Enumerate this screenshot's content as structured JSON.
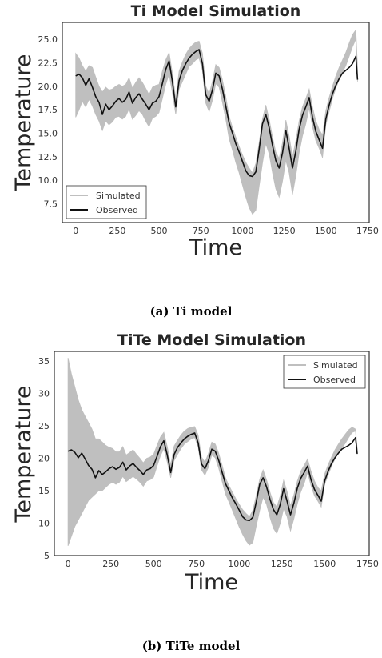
{
  "chart_data": [
    {
      "type": "line",
      "title": "Ti Model Simulation",
      "xlabel": "Time",
      "ylabel": "Temperature",
      "xlim": [
        -80,
        1760
      ],
      "ylim": [
        5.5,
        26.8
      ],
      "xticks": [
        0,
        250,
        500,
        750,
        1000,
        1250,
        1500,
        1750
      ],
      "yticks": [
        7.5,
        10.0,
        12.5,
        15.0,
        17.5,
        20.0,
        22.5,
        25.0
      ],
      "ytick_labels": [
        "7.5",
        "10.0",
        "12.5",
        "15.0",
        "17.5",
        "20.0",
        "22.5",
        "25.0"
      ],
      "grid": false,
      "legend_position": "lower-left",
      "caption": "(a) Ti model",
      "series": [
        {
          "name": "Simulated",
          "color": "#bfbfbf",
          "x": [
            0,
            20,
            40,
            60,
            80,
            100,
            120,
            140,
            160,
            180,
            200,
            220,
            240,
            260,
            280,
            300,
            320,
            340,
            360,
            380,
            400,
            420,
            440,
            460,
            480,
            500,
            520,
            540,
            560,
            580,
            600,
            620,
            640,
            660,
            680,
            700,
            720,
            740,
            760,
            780,
            800,
            820,
            840,
            860,
            880,
            900,
            920,
            940,
            960,
            980,
            1000,
            1020,
            1040,
            1060,
            1080,
            1100,
            1120,
            1140,
            1160,
            1180,
            1200,
            1220,
            1240,
            1260,
            1280,
            1300,
            1320,
            1340,
            1360,
            1380,
            1400,
            1420,
            1440,
            1460,
            1480,
            1500,
            1520,
            1540,
            1560,
            1580,
            1600,
            1620,
            1640,
            1660,
            1680,
            1690
          ],
          "low": [
            16.7,
            17.5,
            18.4,
            17.8,
            18.6,
            17.9,
            17.0,
            16.3,
            15.3,
            16.3,
            15.9,
            16.2,
            16.7,
            16.8,
            16.5,
            16.8,
            17.6,
            16.5,
            16.9,
            17.4,
            17.0,
            16.3,
            15.7,
            16.6,
            16.8,
            17.2,
            18.7,
            20.2,
            21.3,
            19.3,
            17.0,
            19.7,
            20.5,
            21.3,
            22.1,
            22.4,
            22.8,
            23.0,
            21.7,
            18.2,
            17.3,
            18.5,
            20.3,
            19.9,
            18.3,
            16.5,
            14.4,
            13.2,
            11.9,
            10.8,
            9.5,
            8.2,
            7.1,
            6.4,
            6.8,
            9.4,
            11.8,
            13.9,
            12.8,
            10.8,
            9.1,
            8.2,
            9.9,
            12.1,
            10.8,
            8.5,
            10.5,
            12.9,
            14.7,
            16.0,
            17.7,
            15.7,
            14.2,
            13.4,
            12.4,
            15.9,
            17.3,
            18.7,
            19.8,
            20.7,
            21.5,
            22.2,
            23.2,
            24.2,
            25.0,
            20.5
          ],
          "high": [
            23.5,
            23.0,
            22.2,
            21.6,
            22.2,
            22.0,
            21.0,
            20.0,
            19.4,
            19.9,
            19.6,
            19.7,
            20.0,
            20.2,
            20.0,
            20.2,
            20.9,
            19.8,
            20.4,
            20.9,
            20.4,
            19.8,
            19.1,
            19.9,
            20.1,
            20.2,
            21.6,
            22.8,
            23.6,
            21.4,
            18.7,
            21.6,
            22.6,
            23.4,
            24.0,
            24.4,
            24.7,
            24.8,
            23.5,
            20.0,
            19.2,
            20.5,
            22.3,
            22.0,
            20.7,
            18.9,
            16.8,
            15.6,
            14.6,
            13.6,
            12.7,
            11.9,
            11.3,
            10.8,
            11.8,
            14.0,
            16.5,
            18.0,
            16.5,
            14.6,
            13.0,
            12.3,
            14.0,
            16.4,
            14.7,
            12.5,
            14.2,
            16.3,
            17.8,
            18.7,
            19.7,
            17.8,
            16.3,
            15.4,
            14.8,
            17.4,
            18.8,
            20.0,
            21.1,
            22.0,
            22.8,
            23.6,
            24.6,
            25.5,
            26.0,
            22.0
          ]
        },
        {
          "name": "Observed",
          "color": "#111111",
          "x": [
            0,
            20,
            40,
            60,
            80,
            100,
            120,
            140,
            160,
            180,
            200,
            220,
            240,
            260,
            280,
            300,
            320,
            340,
            360,
            380,
            400,
            420,
            440,
            460,
            480,
            500,
            520,
            540,
            560,
            580,
            600,
            620,
            640,
            660,
            680,
            700,
            720,
            740,
            760,
            780,
            800,
            820,
            840,
            860,
            880,
            900,
            920,
            940,
            960,
            980,
            1000,
            1020,
            1040,
            1060,
            1080,
            1100,
            1120,
            1140,
            1160,
            1180,
            1200,
            1220,
            1240,
            1260,
            1280,
            1300,
            1320,
            1340,
            1360,
            1380,
            1400,
            1420,
            1440,
            1460,
            1480,
            1500,
            1520,
            1540,
            1560,
            1580,
            1600,
            1620,
            1640,
            1660,
            1680,
            1690
          ],
          "y": [
            21.1,
            21.3,
            20.9,
            20.1,
            20.8,
            19.9,
            18.9,
            18.3,
            17.0,
            18.1,
            17.5,
            17.9,
            18.4,
            18.7,
            18.3,
            18.6,
            19.4,
            18.2,
            18.8,
            19.2,
            18.6,
            18.1,
            17.5,
            18.2,
            18.4,
            18.9,
            20.3,
            21.8,
            22.7,
            20.5,
            17.8,
            20.6,
            21.7,
            22.4,
            23.0,
            23.4,
            23.7,
            23.9,
            22.4,
            19.1,
            18.4,
            19.6,
            21.4,
            21.1,
            19.7,
            17.9,
            16.1,
            15.0,
            13.9,
            13.0,
            12.0,
            11.0,
            10.5,
            10.4,
            10.9,
            13.3,
            16.0,
            17.0,
            15.6,
            13.7,
            12.1,
            11.3,
            12.9,
            15.3,
            13.4,
            11.3,
            13.1,
            15.4,
            16.9,
            17.8,
            18.8,
            16.7,
            15.2,
            14.3,
            13.4,
            16.5,
            18.0,
            19.2,
            20.1,
            20.8,
            21.4,
            21.7,
            22.0,
            22.4,
            23.2,
            20.7
          ]
        }
      ]
    },
    {
      "type": "line",
      "title": "TiTe Model Simulation",
      "xlabel": "Time",
      "ylabel": "Temperature",
      "xlim": [
        -80,
        1760
      ],
      "ylim": [
        5,
        36.5
      ],
      "xticks": [
        0,
        250,
        500,
        750,
        1000,
        1250,
        1500,
        1750
      ],
      "yticks": [
        5,
        10,
        15,
        20,
        25,
        30,
        35
      ],
      "ytick_labels": [
        "5",
        "10",
        "15",
        "20",
        "25",
        "30",
        "35"
      ],
      "grid": false,
      "legend_position": "top-right",
      "caption": "(b) TiTe model",
      "series": [
        {
          "name": "Simulated",
          "color": "#bfbfbf",
          "x": [
            0,
            20,
            40,
            60,
            80,
            100,
            120,
            140,
            160,
            180,
            200,
            220,
            240,
            260,
            280,
            300,
            320,
            340,
            360,
            380,
            400,
            420,
            440,
            460,
            480,
            500,
            520,
            540,
            560,
            580,
            600,
            620,
            640,
            660,
            680,
            700,
            720,
            740,
            760,
            780,
            800,
            820,
            840,
            860,
            880,
            900,
            920,
            940,
            960,
            980,
            1000,
            1020,
            1040,
            1060,
            1080,
            1100,
            1120,
            1140,
            1160,
            1180,
            1200,
            1220,
            1240,
            1260,
            1280,
            1300,
            1320,
            1340,
            1360,
            1380,
            1400,
            1420,
            1440,
            1460,
            1480,
            1500,
            1520,
            1540,
            1560,
            1580,
            1600,
            1620,
            1640,
            1660,
            1680,
            1690
          ],
          "low": [
            6.5,
            8.0,
            9.5,
            10.5,
            11.5,
            12.5,
            13.5,
            14.0,
            14.5,
            15.0,
            15.0,
            15.5,
            16.0,
            16.3,
            16.0,
            16.3,
            17.2,
            16.4,
            16.8,
            17.2,
            16.8,
            16.3,
            15.7,
            16.5,
            16.7,
            17.1,
            18.8,
            20.4,
            21.5,
            19.4,
            17.0,
            19.7,
            20.6,
            21.5,
            22.2,
            22.6,
            23.0,
            23.2,
            21.8,
            18.2,
            17.4,
            18.6,
            20.5,
            20.1,
            18.5,
            16.5,
            14.5,
            13.3,
            12.0,
            10.7,
            9.4,
            8.3,
            7.3,
            6.6,
            7.0,
            9.6,
            12.0,
            14.0,
            12.9,
            10.9,
            9.2,
            8.4,
            10.0,
            12.2,
            11.0,
            8.8,
            10.7,
            13.0,
            14.8,
            16.1,
            17.8,
            15.8,
            14.2,
            13.4,
            12.5,
            16.0,
            17.4,
            18.8,
            19.9,
            20.8,
            21.6,
            22.3,
            23.2,
            24.0,
            24.2,
            20.6
          ],
          "high": [
            35.5,
            33.0,
            31.0,
            29.0,
            27.5,
            26.5,
            25.5,
            24.5,
            23.0,
            23.0,
            22.5,
            22.0,
            21.7,
            21.5,
            21.0,
            21.0,
            21.8,
            20.5,
            20.9,
            21.3,
            20.6,
            20.0,
            19.3,
            20.0,
            20.2,
            20.6,
            22.0,
            23.3,
            24.0,
            21.8,
            19.0,
            21.9,
            22.8,
            23.6,
            24.2,
            24.6,
            24.8,
            24.9,
            23.6,
            20.2,
            19.4,
            20.7,
            22.5,
            22.2,
            20.8,
            19.0,
            17.0,
            15.8,
            14.8,
            13.8,
            12.9,
            12.1,
            11.5,
            11.0,
            12.0,
            14.3,
            16.8,
            18.2,
            16.7,
            14.8,
            13.2,
            12.5,
            14.2,
            16.6,
            14.9,
            12.7,
            14.4,
            16.5,
            18.0,
            18.9,
            19.9,
            18.0,
            16.5,
            15.5,
            15.0,
            17.6,
            19.0,
            20.2,
            21.3,
            22.2,
            23.0,
            23.7,
            24.4,
            24.8,
            24.5,
            21.5
          ]
        },
        {
          "name": "Observed",
          "color": "#111111",
          "x": [
            0,
            20,
            40,
            60,
            80,
            100,
            120,
            140,
            160,
            180,
            200,
            220,
            240,
            260,
            280,
            300,
            320,
            340,
            360,
            380,
            400,
            420,
            440,
            460,
            480,
            500,
            520,
            540,
            560,
            580,
            600,
            620,
            640,
            660,
            680,
            700,
            720,
            740,
            760,
            780,
            800,
            820,
            840,
            860,
            880,
            900,
            920,
            940,
            960,
            980,
            1000,
            1020,
            1040,
            1060,
            1080,
            1100,
            1120,
            1140,
            1160,
            1180,
            1200,
            1220,
            1240,
            1260,
            1280,
            1300,
            1320,
            1340,
            1360,
            1380,
            1400,
            1420,
            1440,
            1460,
            1480,
            1500,
            1520,
            1540,
            1560,
            1580,
            1600,
            1620,
            1640,
            1660,
            1680,
            1690
          ],
          "y": [
            21.1,
            21.3,
            20.9,
            20.1,
            20.8,
            19.9,
            18.9,
            18.3,
            17.0,
            18.1,
            17.5,
            17.9,
            18.4,
            18.7,
            18.3,
            18.6,
            19.4,
            18.2,
            18.8,
            19.2,
            18.6,
            18.1,
            17.5,
            18.2,
            18.4,
            18.9,
            20.3,
            21.8,
            22.7,
            20.5,
            17.8,
            20.6,
            21.7,
            22.4,
            23.0,
            23.4,
            23.7,
            23.9,
            22.4,
            19.1,
            18.4,
            19.6,
            21.4,
            21.1,
            19.7,
            17.9,
            16.1,
            15.0,
            13.9,
            13.0,
            12.0,
            11.0,
            10.5,
            10.4,
            10.9,
            13.3,
            16.0,
            17.0,
            15.6,
            13.7,
            12.1,
            11.3,
            12.9,
            15.3,
            13.4,
            11.3,
            13.1,
            15.4,
            16.9,
            17.8,
            18.8,
            16.7,
            15.2,
            14.3,
            13.4,
            16.5,
            18.0,
            19.2,
            20.1,
            20.8,
            21.4,
            21.7,
            22.0,
            22.4,
            23.2,
            20.7
          ]
        }
      ]
    }
  ]
}
